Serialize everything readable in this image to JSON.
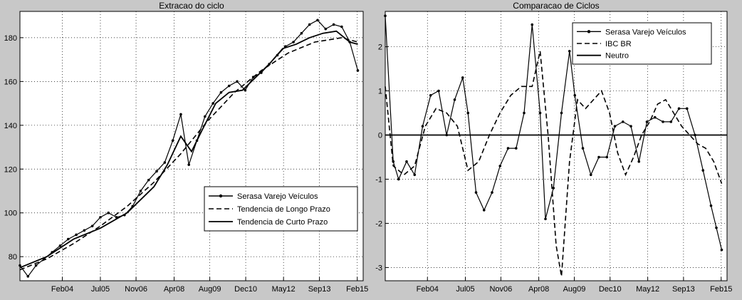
{
  "chart_data": [
    {
      "type": "line",
      "title": "Extracao do ciclo",
      "xlabel": "",
      "ylabel": "",
      "xlim": [
        2002.5,
        2015.3
      ],
      "ylim": [
        69,
        192
      ],
      "grid": true,
      "legend": "bottom-right",
      "x_ticks": [
        {
          "x": 2004.08,
          "label": "Feb04"
        },
        {
          "x": 2005.5,
          "label": "Jul05"
        },
        {
          "x": 2006.83,
          "label": "Nov06"
        },
        {
          "x": 2008.25,
          "label": "Apr08"
        },
        {
          "x": 2009.58,
          "label": "Aug09"
        },
        {
          "x": 2010.92,
          "label": "Dec10"
        },
        {
          "x": 2012.33,
          "label": "May12"
        },
        {
          "x": 2013.67,
          "label": "Sep13"
        },
        {
          "x": 2015.08,
          "label": "Feb15"
        }
      ],
      "y_ticks": [
        80,
        100,
        120,
        140,
        160,
        180
      ],
      "series": [
        {
          "name": "Serasa Varejo Veículos",
          "style": "dot-line",
          "x": [
            2002.5,
            2002.8,
            2003.1,
            2003.4,
            2003.7,
            2004.0,
            2004.3,
            2004.6,
            2004.9,
            2005.2,
            2005.5,
            2005.8,
            2006.1,
            2006.4,
            2006.7,
            2007.0,
            2007.3,
            2007.6,
            2007.9,
            2008.2,
            2008.5,
            2008.8,
            2009.1,
            2009.4,
            2009.7,
            2010.0,
            2010.3,
            2010.6,
            2010.9,
            2011.2,
            2011.5,
            2011.8,
            2012.1,
            2012.4,
            2012.7,
            2013.0,
            2013.3,
            2013.6,
            2013.9,
            2014.2,
            2014.5,
            2014.8,
            2015.1
          ],
          "values": [
            76,
            71,
            76,
            79,
            82,
            85,
            88,
            90,
            92,
            94,
            98,
            100,
            98,
            99,
            103,
            110,
            115,
            119,
            123,
            133,
            145,
            122,
            133,
            144,
            150,
            155,
            158,
            160,
            156,
            162,
            164,
            168,
            172,
            176,
            178,
            182,
            186,
            188,
            184,
            186,
            185,
            178,
            165
          ]
        },
        {
          "name": "Tendencia de Longo Prazo",
          "style": "dashed",
          "x": [
            2002.5,
            2003.5,
            2004.5,
            2005.5,
            2006.5,
            2007.5,
            2008.5,
            2009.5,
            2010.5,
            2011.5,
            2012.5,
            2013.5,
            2014.5,
            2015.1
          ],
          "values": [
            74,
            79,
            86,
            94,
            103,
            114,
            127,
            142,
            155,
            165,
            173,
            178,
            180,
            178
          ]
        },
        {
          "name": "Tendencia de Curto Prazo",
          "style": "solid",
          "x": [
            2002.5,
            2003.5,
            2004.5,
            2005.5,
            2006.5,
            2007.5,
            2008.0,
            2008.5,
            2008.9,
            2009.3,
            2009.8,
            2010.3,
            2010.8,
            2011.3,
            2011.8,
            2012.3,
            2012.8,
            2013.3,
            2013.8,
            2014.3,
            2014.8,
            2015.1
          ],
          "values": [
            75,
            80,
            88,
            93,
            100,
            112,
            122,
            135,
            128,
            138,
            150,
            155,
            156,
            162,
            168,
            175,
            177,
            180,
            182,
            183,
            178,
            177
          ]
        }
      ]
    },
    {
      "type": "line",
      "title": "Comparacao de Ciclos",
      "xlabel": "",
      "ylabel": "",
      "xlim": [
        2002.5,
        2015.3
      ],
      "ylim": [
        -3.3,
        2.8
      ],
      "grid": true,
      "legend": "top-right",
      "x_ticks": [
        {
          "x": 2004.08,
          "label": "Feb04"
        },
        {
          "x": 2005.5,
          "label": "Jul05"
        },
        {
          "x": 2006.83,
          "label": "Nov06"
        },
        {
          "x": 2008.25,
          "label": "Apr08"
        },
        {
          "x": 2009.58,
          "label": "Aug09"
        },
        {
          "x": 2010.92,
          "label": "Dec10"
        },
        {
          "x": 2012.33,
          "label": "May12"
        },
        {
          "x": 2013.67,
          "label": "Sep13"
        },
        {
          "x": 2015.08,
          "label": "Feb15"
        }
      ],
      "y_ticks": [
        -3,
        -2,
        -1,
        0,
        1,
        2
      ],
      "series": [
        {
          "name": "Serasa Varejo Veículos",
          "style": "dot-line",
          "x": [
            2002.5,
            2002.8,
            2003.0,
            2003.3,
            2003.6,
            2003.9,
            2004.2,
            2004.5,
            2004.8,
            2005.1,
            2005.4,
            2005.6,
            2005.9,
            2006.2,
            2006.5,
            2006.8,
            2007.1,
            2007.4,
            2007.7,
            2008.0,
            2008.3,
            2008.5,
            2008.8,
            2009.1,
            2009.4,
            2009.6,
            2009.9,
            2010.2,
            2010.5,
            2010.8,
            2011.1,
            2011.4,
            2011.7,
            2012.0,
            2012.3,
            2012.6,
            2012.9,
            2013.2,
            2013.5,
            2013.8,
            2014.1,
            2014.4,
            2014.7,
            2014.9,
            2015.1
          ],
          "values": [
            2.7,
            -0.6,
            -1.0,
            -0.6,
            -0.9,
            0.2,
            0.9,
            1.0,
            0.0,
            0.8,
            1.3,
            0.5,
            -1.3,
            -1.7,
            -1.3,
            -0.7,
            -0.3,
            -0.3,
            0.5,
            2.5,
            0.5,
            -1.9,
            -1.2,
            0.5,
            1.9,
            0.9,
            -0.3,
            -0.9,
            -0.5,
            -0.5,
            0.2,
            0.3,
            0.2,
            -0.6,
            0.3,
            0.4,
            0.3,
            0.3,
            0.6,
            0.6,
            0.0,
            -0.8,
            -1.6,
            -2.1,
            -2.6
          ]
        },
        {
          "name": "IBC BR",
          "style": "dashed",
          "x": [
            2002.5,
            2002.8,
            2003.2,
            2003.6,
            2004.0,
            2004.4,
            2004.8,
            2005.2,
            2005.6,
            2006.0,
            2006.4,
            2006.8,
            2007.2,
            2007.6,
            2008.0,
            2008.3,
            2008.6,
            2008.9,
            2009.1,
            2009.4,
            2009.7,
            2010.0,
            2010.3,
            2010.6,
            2010.9,
            2011.2,
            2011.5,
            2011.8,
            2012.1,
            2012.4,
            2012.7,
            2013.0,
            2013.3,
            2013.6,
            2013.9,
            2014.2,
            2014.5,
            2014.8,
            2015.1
          ],
          "values": [
            1.1,
            -0.7,
            -0.9,
            -0.7,
            0.2,
            0.6,
            0.5,
            0.2,
            -0.8,
            -0.6,
            0.0,
            0.5,
            0.9,
            1.1,
            1.1,
            1.9,
            0.0,
            -2.5,
            -3.2,
            -0.6,
            0.8,
            0.6,
            0.8,
            1.0,
            0.5,
            -0.4,
            -0.9,
            -0.5,
            0.0,
            0.3,
            0.7,
            0.8,
            0.5,
            0.2,
            0.0,
            -0.2,
            -0.3,
            -0.6,
            -1.1
          ]
        },
        {
          "name": "Neutro",
          "style": "solid",
          "x": [
            2002.5,
            2015.3
          ],
          "values": [
            0,
            0
          ]
        }
      ]
    }
  ]
}
